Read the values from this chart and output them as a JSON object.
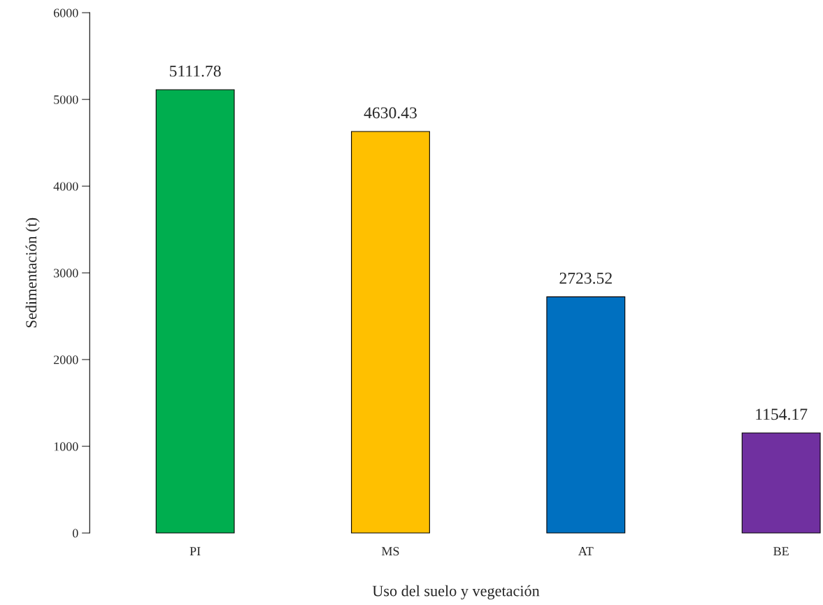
{
  "chart_data": {
    "type": "bar",
    "xlabel": "Uso del suelo y vegetación",
    "ylabel": "Sedimentación (t)",
    "categories": [
      "PI",
      "MS",
      "AT",
      "BE"
    ],
    "values": [
      5111.78,
      4630.43,
      2723.52,
      1154.17
    ],
    "colors": [
      "#00ae4f",
      "#ffc000",
      "#0070c0",
      "#7030a0"
    ],
    "ylim": [
      0,
      6000
    ],
    "yticks": [
      0,
      1000,
      2000,
      3000,
      4000,
      5000,
      6000
    ],
    "data_labels": true,
    "grid": false,
    "legend": false
  }
}
